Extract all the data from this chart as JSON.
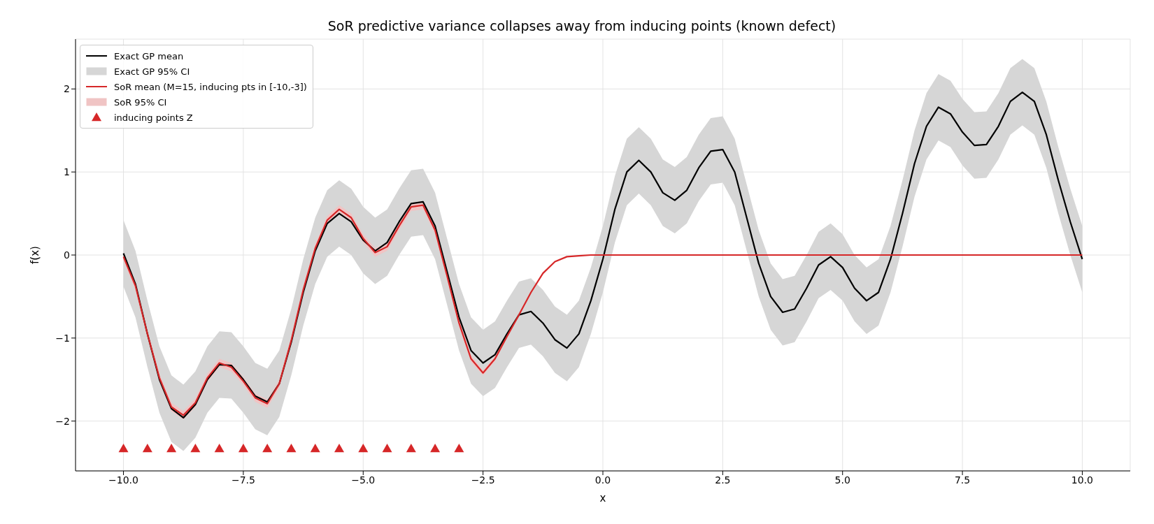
{
  "chart_data": {
    "type": "line",
    "title": "SoR predictive variance collapses away from inducing points (known defect)",
    "xlabel": "x",
    "ylabel": "f(x)",
    "xlim": [
      -11,
      11
    ],
    "xticks": [
      {
        "value": -10,
        "label": "−10.0"
      },
      {
        "value": -7.5,
        "label": "−7.5"
      },
      {
        "value": -5,
        "label": "−5.0"
      },
      {
        "value": -2.5,
        "label": "−2.5"
      },
      {
        "value": 0,
        "label": "0.0"
      },
      2.5,
      {
        "value": 5,
        "label": "5.0"
      },
      7.5,
      {
        "value": 10,
        "label": "10.0"
      }
    ],
    "ylim": [
      -2.6,
      2.6
    ],
    "yticks": [
      {
        "value": -2,
        "label": "−2"
      },
      {
        "value": -1,
        "label": "−1"
      },
      0,
      1,
      2
    ],
    "grid": true,
    "legend": "top left",
    "line_style": "solid",
    "marker": "none",
    "series": [
      {
        "name": "Exact GP mean",
        "color": "#000000",
        "x": [
          -10,
          -9.75,
          -9.5,
          -9.25,
          -9,
          -8.75,
          -8.5,
          -8.25,
          -8,
          -7.75,
          -7.5,
          -7.25,
          -7,
          -6.75,
          -6.5,
          -6.25,
          -6,
          -5.75,
          -5.5,
          -5.25,
          -5,
          -4.75,
          -4.5,
          -4.25,
          -4,
          -3.75,
          -3.5,
          -3.25,
          -3,
          -2.75,
          -2.5,
          -2.25,
          -2,
          -1.75,
          -1.5,
          -1.25,
          -1,
          -0.75,
          -0.5,
          -0.25,
          0,
          0.25,
          0.5,
          0.75,
          1,
          1.25,
          1.5,
          1.75,
          2,
          2.25,
          2.5,
          2.75,
          3,
          3.25,
          3.5,
          3.75,
          4,
          4.25,
          4.5,
          4.75,
          5,
          5.25,
          5.5,
          5.75,
          6,
          6.25,
          6.5,
          6.75,
          7,
          7.25,
          7.5,
          7.75,
          8,
          8.25,
          8.5,
          8.75,
          9,
          9.25,
          9.5,
          9.75,
          10
        ],
        "values": [
          0.02,
          -0.35,
          -0.95,
          -1.5,
          -1.85,
          -1.96,
          -1.8,
          -1.5,
          -1.32,
          -1.33,
          -1.5,
          -1.7,
          -1.77,
          -1.55,
          -1.05,
          -0.45,
          0.05,
          0.38,
          0.5,
          0.4,
          0.18,
          0.05,
          0.15,
          0.4,
          0.62,
          0.64,
          0.35,
          -0.2,
          -0.75,
          -1.15,
          -1.3,
          -1.2,
          -0.95,
          -0.72,
          -0.68,
          -0.82,
          -1.02,
          -1.12,
          -0.95,
          -0.55,
          -0.05,
          0.55,
          1,
          1.14,
          1,
          0.75,
          0.66,
          0.78,
          1.05,
          1.25,
          1.27,
          1,
          0.45,
          -0.1,
          -0.5,
          -0.69,
          -0.65,
          -0.4,
          -0.12,
          -0.02,
          -0.15,
          -0.4,
          -0.55,
          -0.45,
          -0.05,
          0.5,
          1.1,
          1.55,
          1.78,
          1.7,
          1.48,
          1.32,
          1.33,
          1.55,
          1.85,
          1.96,
          1.85,
          1.45,
          0.9,
          0.4,
          -0.05
        ]
      },
      {
        "name": "Exact GP 95% CI",
        "type": "area",
        "color": "#d6d6d6",
        "x": [
          -10,
          -9.75,
          -9.5,
          -9.25,
          -9,
          -8.75,
          -8.5,
          -8.25,
          -8,
          -7.75,
          -7.5,
          -7.25,
          -7,
          -6.75,
          -6.5,
          -6.25,
          -6,
          -5.75,
          -5.5,
          -5.25,
          -5,
          -4.75,
          -4.5,
          -4.25,
          -4,
          -3.75,
          -3.5,
          -3.25,
          -3,
          -2.75,
          -2.5,
          -2.25,
          -2,
          -1.75,
          -1.5,
          -1.25,
          -1,
          -0.75,
          -0.5,
          -0.25,
          0,
          0.25,
          0.5,
          0.75,
          1,
          1.25,
          1.5,
          1.75,
          2,
          2.25,
          2.5,
          2.75,
          3,
          3.25,
          3.5,
          3.75,
          4,
          4.25,
          4.5,
          4.75,
          5,
          5.25,
          5.5,
          5.75,
          6,
          6.25,
          6.5,
          6.75,
          7,
          7.25,
          7.5,
          7.75,
          8,
          8.25,
          8.5,
          8.75,
          9,
          9.25,
          9.5,
          9.75,
          10
        ],
        "values": [
          null,
          null,
          null,
          null,
          null,
          null,
          null,
          null,
          null,
          null,
          null,
          null,
          null,
          null,
          null,
          null,
          null,
          null,
          null,
          null,
          null,
          null,
          null,
          null,
          null,
          null,
          null,
          null,
          null,
          null,
          null,
          null,
          null,
          null,
          null,
          null,
          null,
          null,
          null,
          null,
          null,
          null,
          null,
          null,
          null,
          null,
          null,
          null,
          null,
          null,
          null,
          null,
          null,
          null,
          null,
          null,
          null,
          null,
          null,
          null,
          null,
          null,
          null,
          null,
          null,
          null,
          null,
          null,
          null,
          null,
          null,
          null,
          null,
          null,
          null,
          null,
          null,
          null,
          null,
          null,
          null
        ],
        "lower": [
          -0.38,
          -0.75,
          -1.35,
          -1.9,
          -2.25,
          -2.36,
          -2.2,
          -1.9,
          -1.72,
          -1.73,
          -1.9,
          -2.1,
          -2.17,
          -1.95,
          -1.45,
          -0.85,
          -0.35,
          -0.02,
          0.1,
          0,
          -0.22,
          -0.35,
          -0.25,
          0,
          0.22,
          0.24,
          -0.05,
          -0.6,
          -1.15,
          -1.55,
          -1.7,
          -1.6,
          -1.35,
          -1.12,
          -1.08,
          -1.22,
          -1.42,
          -1.52,
          -1.35,
          -0.95,
          -0.45,
          0.15,
          0.6,
          0.74,
          0.6,
          0.35,
          0.26,
          0.38,
          0.65,
          0.85,
          0.87,
          0.6,
          0.05,
          -0.5,
          -0.9,
          -1.09,
          -1.05,
          -0.8,
          -0.52,
          -0.42,
          -0.55,
          -0.8,
          -0.95,
          -0.85,
          -0.45,
          0.1,
          0.7,
          1.15,
          1.38,
          1.3,
          1.08,
          0.92,
          0.93,
          1.15,
          1.45,
          1.56,
          1.45,
          1.05,
          0.5,
          0,
          -0.45
        ],
        "upper": [
          0.42,
          0.05,
          -0.55,
          -1.1,
          -1.45,
          -1.56,
          -1.4,
          -1.1,
          -0.92,
          -0.93,
          -1.1,
          -1.3,
          -1.37,
          -1.15,
          -0.65,
          -0.05,
          0.45,
          0.78,
          0.9,
          0.8,
          0.58,
          0.45,
          0.55,
          0.8,
          1.02,
          1.04,
          0.75,
          0.2,
          -0.35,
          -0.75,
          -0.9,
          -0.8,
          -0.55,
          -0.32,
          -0.28,
          -0.42,
          -0.62,
          -0.72,
          -0.55,
          -0.15,
          0.35,
          0.95,
          1.4,
          1.54,
          1.4,
          1.15,
          1.06,
          1.18,
          1.45,
          1.65,
          1.67,
          1.4,
          0.85,
          0.3,
          -0.1,
          -0.29,
          -0.25,
          0,
          0.28,
          0.38,
          0.25,
          0,
          -0.15,
          -0.05,
          0.35,
          0.9,
          1.5,
          1.95,
          2.18,
          2.1,
          1.88,
          1.72,
          1.73,
          1.95,
          2.25,
          2.36,
          2.25,
          1.85,
          1.3,
          0.8,
          0.35
        ]
      },
      {
        "name": "SoR mean (M=15, inducing pts in [-10,-3])",
        "color": "#d62728",
        "x": [
          -10,
          -9.75,
          -9.5,
          -9.25,
          -9,
          -8.75,
          -8.5,
          -8.25,
          -8,
          -7.75,
          -7.5,
          -7.25,
          -7,
          -6.75,
          -6.5,
          -6.25,
          -6,
          -5.75,
          -5.5,
          -5.25,
          -5,
          -4.75,
          -4.5,
          -4.25,
          -4,
          -3.75,
          -3.5,
          -3.25,
          -3,
          -2.75,
          -2.5,
          -2.25,
          -2,
          -1.75,
          -1.5,
          -1.25,
          -1,
          -0.75,
          -0.5,
          -0.25,
          0,
          10
        ],
        "values": [
          -0.02,
          -0.37,
          -0.95,
          -1.48,
          -1.83,
          -1.93,
          -1.78,
          -1.48,
          -1.3,
          -1.35,
          -1.52,
          -1.72,
          -1.79,
          -1.55,
          -1.03,
          -0.42,
          0.08,
          0.42,
          0.55,
          0.45,
          0.2,
          0.03,
          0.1,
          0.35,
          0.58,
          0.6,
          0.3,
          -0.25,
          -0.82,
          -1.25,
          -1.42,
          -1.25,
          -0.98,
          -0.72,
          -0.45,
          -0.22,
          -0.08,
          -0.02,
          -0.01,
          0,
          0,
          0
        ]
      },
      {
        "name": "SoR 95% CI",
        "type": "area",
        "color": "#f0c4c4",
        "x": [
          -10,
          -9.75,
          -9.5,
          -9.25,
          -9,
          -8.75,
          -8.5,
          -8.25,
          -8,
          -7.75,
          -7.5,
          -7.25,
          -7,
          -6.75,
          -6.5,
          -6.25,
          -6,
          -5.75,
          -5.5,
          -5.25,
          -5,
          -4.75,
          -4.5,
          -4.25,
          -4,
          -3.75,
          -3.5,
          -3.25,
          -3,
          -2.75,
          -2.5,
          -2.25,
          -2,
          -1.75,
          -1.5,
          -1.25,
          -1,
          -0.75,
          -0.5,
          -0.25,
          0,
          10
        ],
        "values": [
          null,
          null,
          null,
          null,
          null,
          null,
          null,
          null,
          null,
          null,
          null,
          null,
          null,
          null,
          null,
          null,
          null,
          null,
          null,
          null,
          null,
          null,
          null,
          null,
          null,
          null,
          null,
          null,
          null,
          null,
          null,
          null,
          null,
          null,
          null,
          null,
          null,
          null,
          null,
          null,
          null,
          null
        ],
        "lower": [
          -0.07,
          -0.42,
          -1,
          -1.53,
          -1.88,
          -1.98,
          -1.83,
          -1.53,
          -1.35,
          -1.4,
          -1.57,
          -1.77,
          -1.84,
          -1.6,
          -1.08,
          -0.47,
          0.03,
          0.37,
          0.5,
          0.4,
          0.15,
          -0.02,
          0.05,
          0.3,
          0.53,
          0.55,
          0.25,
          -0.3,
          -0.87,
          -1.29,
          -1.45,
          -1.28,
          -1,
          -0.74,
          -0.46,
          -0.23,
          -0.08,
          -0.02,
          -0.01,
          0,
          0,
          0
        ],
        "upper": [
          0.03,
          -0.32,
          -0.9,
          -1.43,
          -1.78,
          -1.88,
          -1.73,
          -1.43,
          -1.25,
          -1.3,
          -1.47,
          -1.67,
          -1.74,
          -1.5,
          -0.98,
          -0.37,
          0.13,
          0.47,
          0.6,
          0.5,
          0.25,
          0.08,
          0.15,
          0.4,
          0.63,
          0.65,
          0.35,
          -0.2,
          -0.77,
          -1.21,
          -1.39,
          -1.22,
          -0.96,
          -0.7,
          -0.44,
          -0.21,
          -0.08,
          -0.02,
          -0.01,
          0,
          0,
          0
        ]
      },
      {
        "name": "inducing points Z",
        "type": "scatter",
        "color": "#d62728",
        "marker": "triangle",
        "x": [
          -10,
          -9.5,
          -9,
          -8.5,
          -8,
          -7.5,
          -7,
          -6.5,
          -6,
          -5.5,
          -5,
          -4.5,
          -4,
          -3.5,
          -3
        ],
        "values": [
          -2.33,
          -2.33,
          -2.33,
          -2.33,
          -2.33,
          -2.33,
          -2.33,
          -2.33,
          -2.33,
          -2.33,
          -2.33,
          -2.33,
          -2.33,
          -2.33,
          -2.33
        ]
      }
    ]
  }
}
